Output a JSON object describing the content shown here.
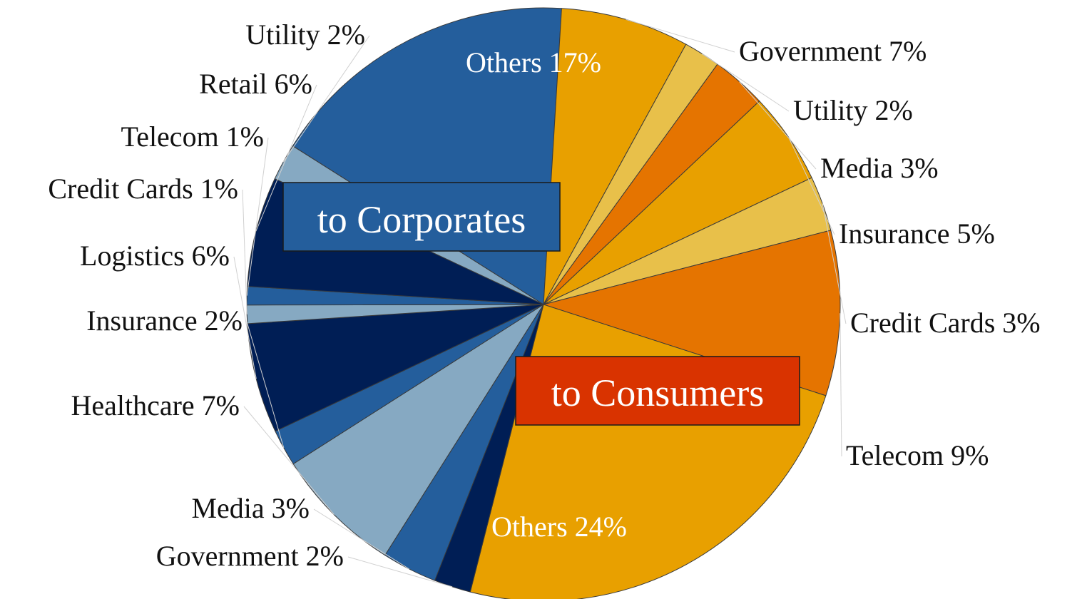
{
  "chart_data": {
    "type": "pie",
    "title": "",
    "groups": [
      {
        "name": "to Corporates",
        "color": "#245e9c"
      },
      {
        "name": "to Consumers",
        "color": "#d93300"
      }
    ],
    "slices": [
      {
        "label": "Others 17%",
        "category": "Others",
        "value": 17,
        "group": "to Corporates",
        "color": "#245e9c",
        "label_inside": true
      },
      {
        "label": "Government 7%",
        "category": "Government",
        "value": 7,
        "group": "to Consumers",
        "color": "#e8a000"
      },
      {
        "label": "Utility 2%",
        "category": "Utility",
        "value": 2,
        "group": "to Consumers",
        "color": "#e8c04a"
      },
      {
        "label": "Media 3%",
        "category": "Media",
        "value": 3,
        "group": "to Consumers",
        "color": "#e57400"
      },
      {
        "label": "Insurance 5%",
        "category": "Insurance",
        "value": 5,
        "group": "to Consumers",
        "color": "#e8a000"
      },
      {
        "label": "Credit Cards 3%",
        "category": "Credit Cards",
        "value": 3,
        "group": "to Consumers",
        "color": "#e8c04a"
      },
      {
        "label": "Telecom 9%",
        "category": "Telecom",
        "value": 9,
        "group": "to Consumers",
        "color": "#e57400"
      },
      {
        "label": "Others 24%",
        "category": "Others",
        "value": 24,
        "group": "to Consumers",
        "color": "#e8a000",
        "label_inside": true
      },
      {
        "label": "Government 2%",
        "category": "Government",
        "value": 2,
        "group": "to Corporates",
        "color": "#001e55"
      },
      {
        "label": "Media 3%",
        "category": "Media",
        "value": 3,
        "group": "to Corporates",
        "color": "#245e9c"
      },
      {
        "label": "Healthcare 7%",
        "category": "Healthcare",
        "value": 7,
        "group": "to Corporates",
        "color": "#86a9c2"
      },
      {
        "label": "Insurance 2%",
        "category": "Insurance",
        "value": 2,
        "group": "to Corporates",
        "color": "#245e9c"
      },
      {
        "label": "Logistics 6%",
        "category": "Logistics",
        "value": 6,
        "group": "to Corporates",
        "color": "#001e55"
      },
      {
        "label": "Credit Cards 1%",
        "category": "Credit Cards",
        "value": 1,
        "group": "to Corporates",
        "color": "#86a9c2"
      },
      {
        "label": "Telecom 1%",
        "category": "Telecom",
        "value": 1,
        "group": "to Corporates",
        "color": "#245e9c"
      },
      {
        "label": "Retail 6%",
        "category": "Retail",
        "value": 6,
        "group": "to Corporates",
        "color": "#001e55"
      },
      {
        "label": "Utility 2%",
        "category": "Utility",
        "value": 2,
        "group": "to Corporates",
        "color": "#86a9c2"
      }
    ],
    "legend": "none"
  }
}
